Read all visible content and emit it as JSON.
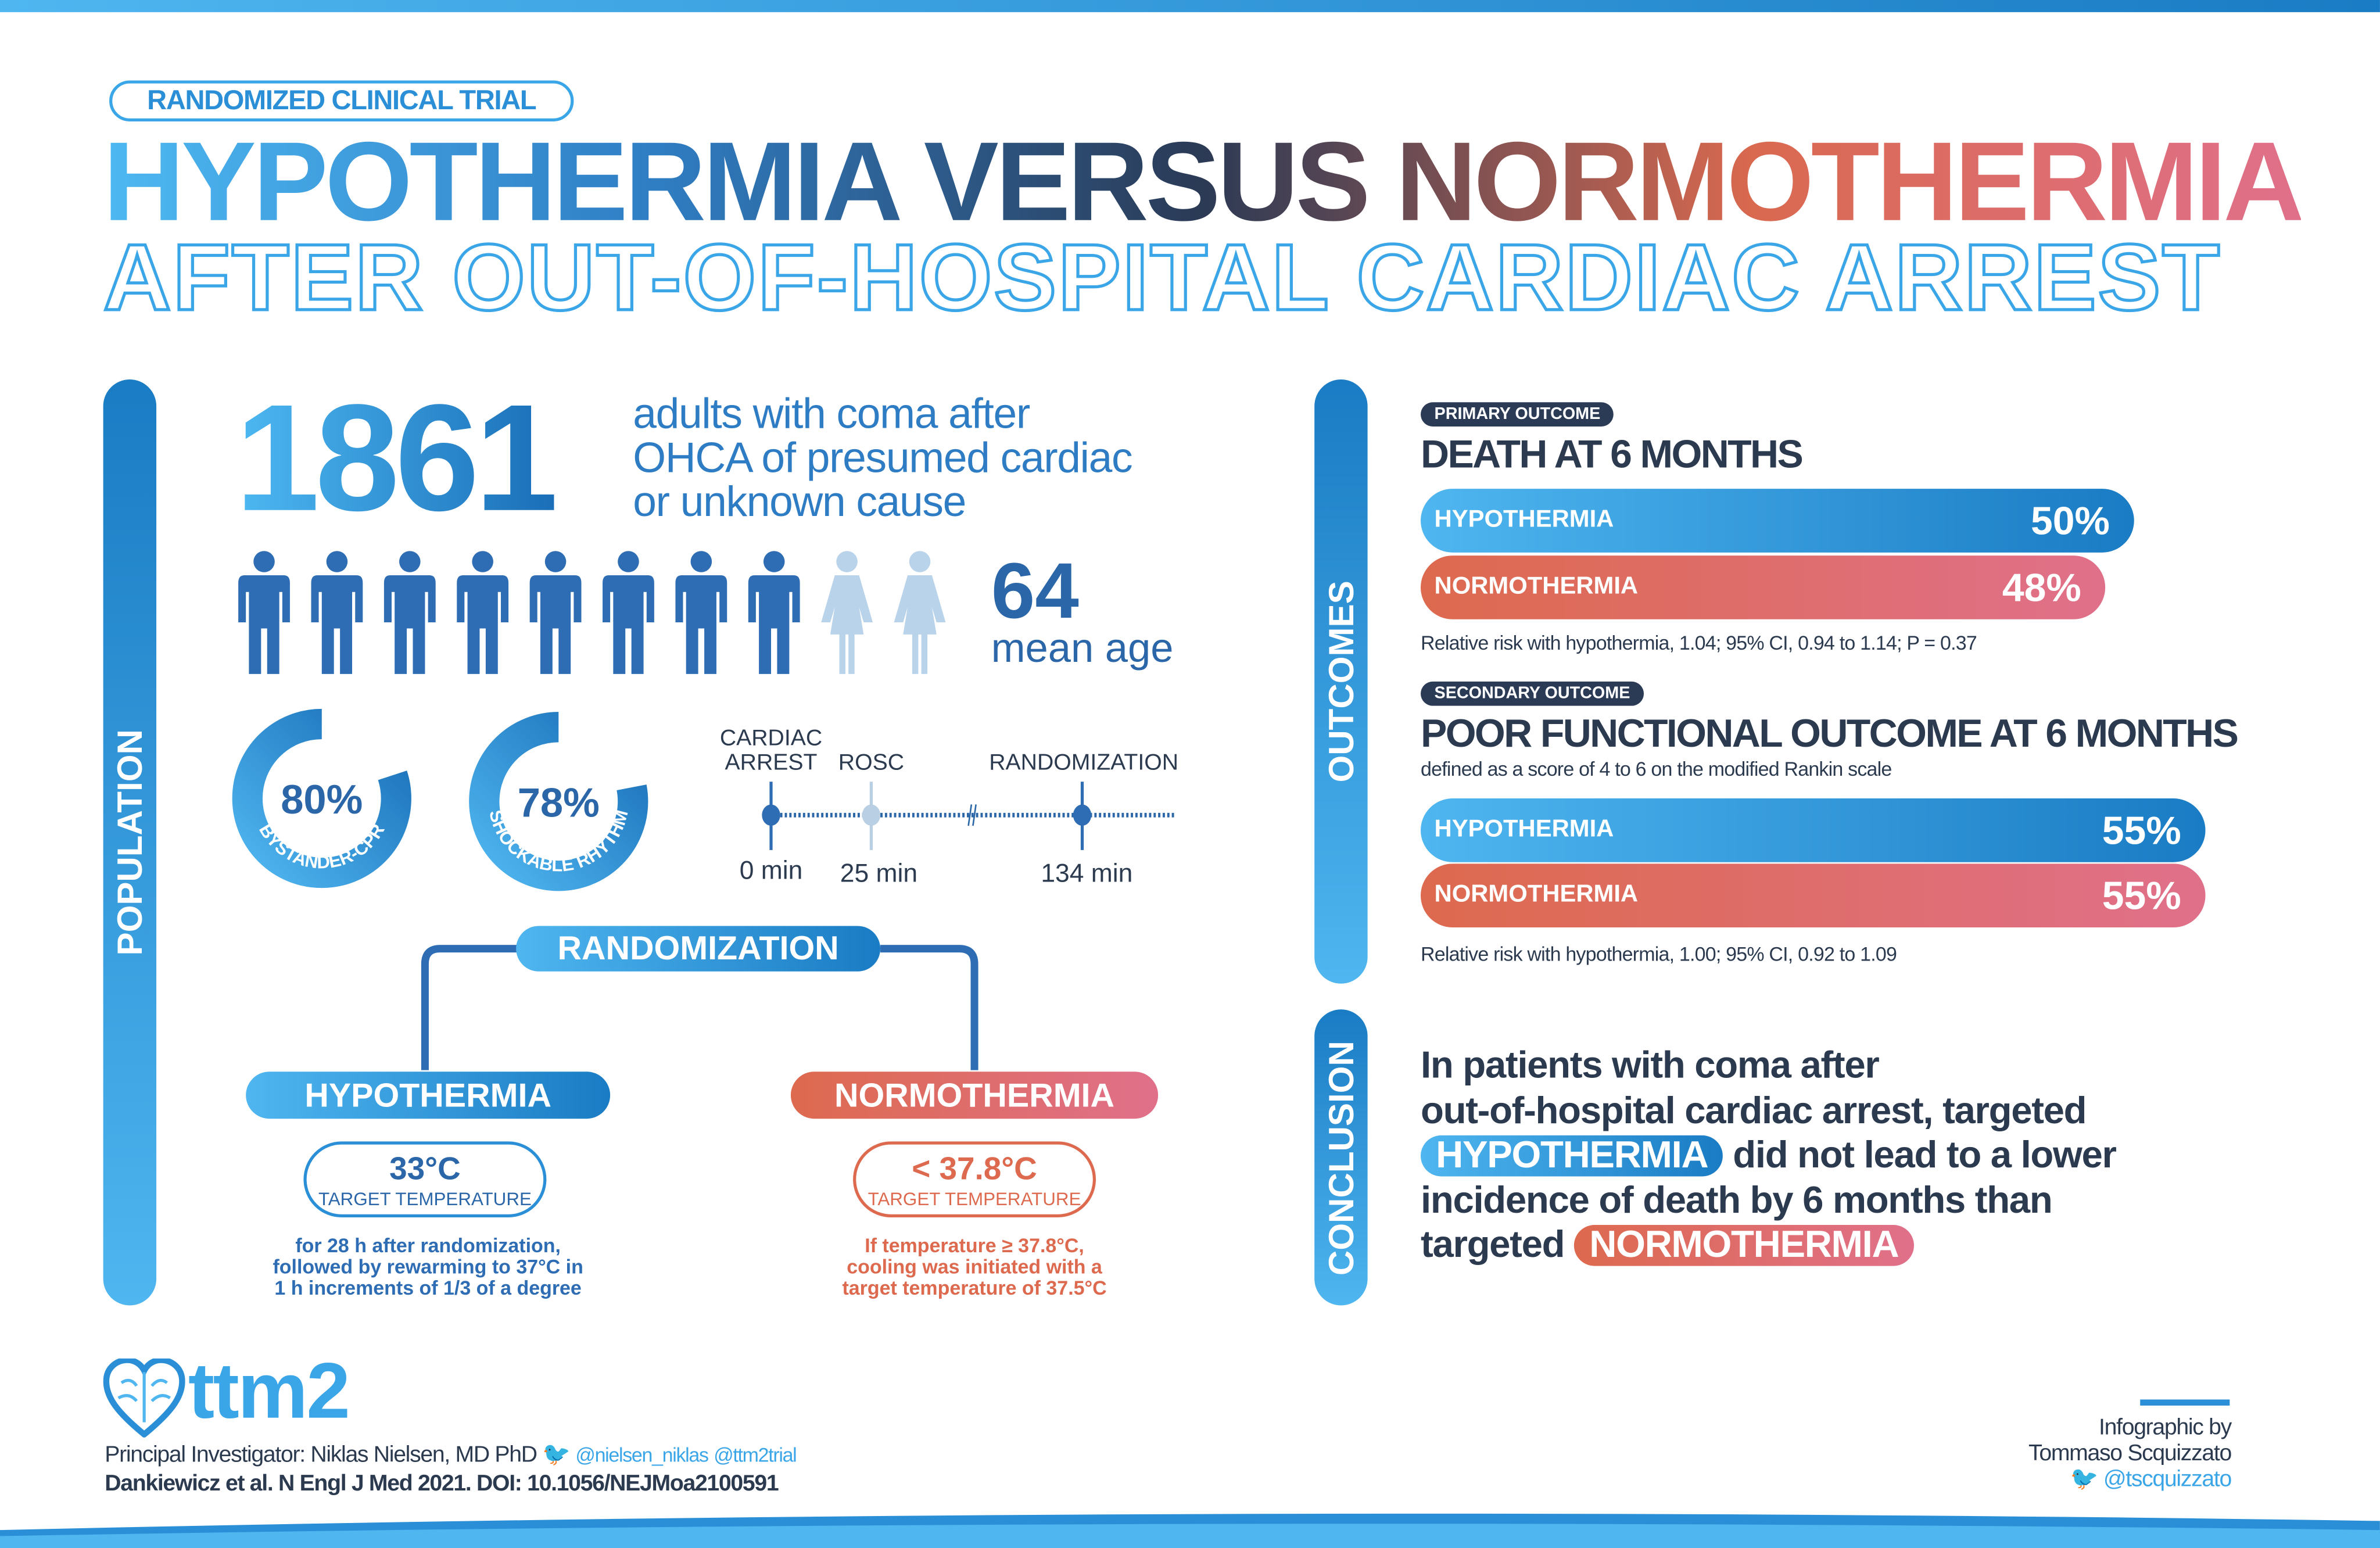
{
  "header": {
    "badge": "RANDOMIZED CLINICAL TRIAL",
    "title_line1": "HYPOTHERMIA VERSUS NORMOTHERMIA",
    "title_line2": "AFTER OUT-OF-HOSPITAL CARDIAC ARREST"
  },
  "population": {
    "section_label": "POPULATION",
    "count": "1861",
    "description": [
      "adults with coma after",
      "OHCA of presumed cardiac",
      "or unknown cause"
    ],
    "people_male": 8,
    "people_female": 2,
    "age_value": "64",
    "age_label": "mean age",
    "donuts": [
      {
        "value": "80%",
        "fraction": 0.8,
        "label": "BYSTANDER-CPR"
      },
      {
        "value": "78%",
        "fraction": 0.78,
        "label": "SHOCKABLE RHYTHM"
      }
    ],
    "timeline": [
      {
        "label_1": "CARDIAC",
        "label_2": "ARREST",
        "time": "0 min"
      },
      {
        "label_1": "",
        "label_2": "ROSC",
        "time": "25 min"
      },
      {
        "label_1": "",
        "label_2": "RANDOMIZATION",
        "time": "134 min"
      }
    ],
    "randomization_label": "RANDOMIZATION",
    "arms": [
      {
        "name": "HYPOTHERMIA",
        "temp": "33°C",
        "temp_label": "TARGET TEMPERATURE",
        "details": [
          "for 28 h after randomization,",
          "followed by rewarming to 37°C in",
          "1 h increments of 1/3 of a degree"
        ]
      },
      {
        "name": "NORMOTHERMIA",
        "temp": "< 37.8°C",
        "temp_label": "TARGET TEMPERATURE",
        "details": [
          "If temperature ≥ 37.8°C,",
          "cooling was initiated with a",
          "target temperature of 37.5°C"
        ]
      }
    ]
  },
  "outcomes": {
    "section_label": "OUTCOMES",
    "primary": {
      "badge": "PRIMARY OUTCOME",
      "title": "DEATH AT 6 MONTHS",
      "bars": [
        {
          "name": "HYPOTHERMIA",
          "value": 50,
          "label": "50%"
        },
        {
          "name": "NORMOTHERMIA",
          "value": 48,
          "label": "48%"
        }
      ],
      "note": "Relative risk with hypothermia, 1.04; 95% CI, 0.94 to 1.14; P = 0.37"
    },
    "secondary": {
      "badge": "SECONDARY OUTCOME",
      "title": "POOR FUNCTIONAL OUTCOME AT 6 MONTHS",
      "subtitle": "defined as a score of 4 to 6 on the modified Rankin scale",
      "bars": [
        {
          "name": "HYPOTHERMIA",
          "value": 55,
          "label": "55%"
        },
        {
          "name": "NORMOTHERMIA",
          "value": 55,
          "label": "55%"
        }
      ],
      "note": "Relative risk with hypothermia, 1.00; 95% CI, 0.92 to 1.09"
    }
  },
  "conclusion": {
    "section_label": "CONCLUSION",
    "line1": "In patients with coma after",
    "line2": "out-of-hospital cardiac arrest, targeted",
    "pill1": "HYPOTHERMIA",
    "line3": " did not lead to a lower",
    "line4": "incidence of death by 6 months than",
    "line5": "targeted ",
    "pill2": "NORMOTHERMIA"
  },
  "footer": {
    "logo": "ttm2",
    "investigator": "Principal Investigator: Niklas Nielsen, MD PhD",
    "handle1": "@nielsen_niklas",
    "handle2": "@ttm2trial",
    "citation": "Dankiewicz et al. N Engl J Med 2021. DOI: 10.1056/NEJMoa2100591",
    "credit_1": "Infographic by",
    "credit_2": "Tommaso Scquizzato",
    "credit_handle": "@tscquizzato"
  },
  "colors": {
    "blue": "#1a7cc4",
    "light_blue": "#4fb6f0",
    "red": "#dd6a4e",
    "pink": "#e0708a",
    "navy": "#2b3a55"
  }
}
